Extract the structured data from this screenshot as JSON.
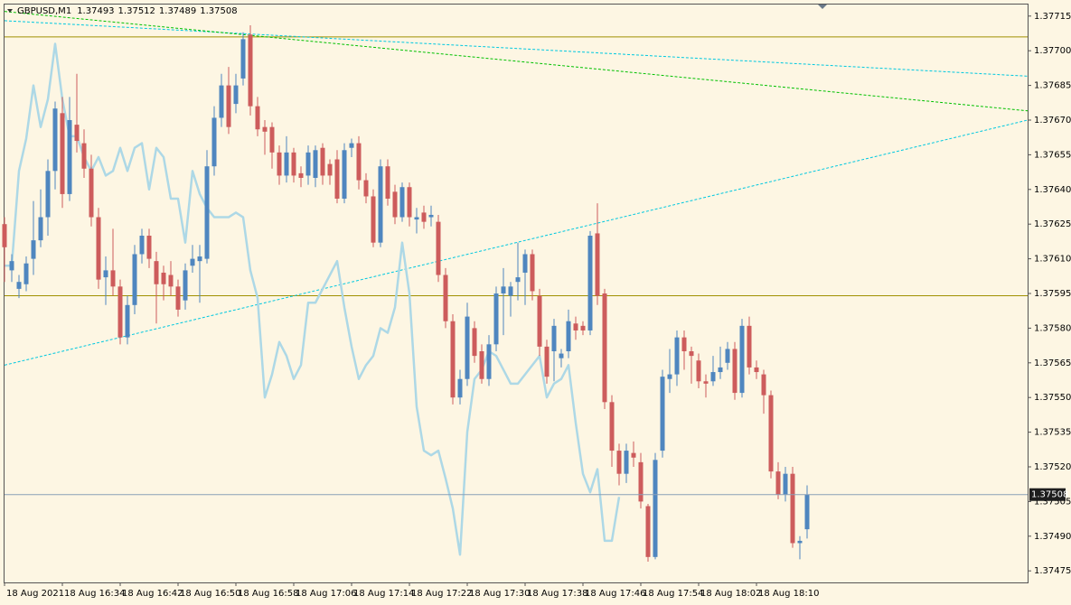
{
  "chart_data": {
    "type": "candlestick",
    "symbol": "GBPUSD,M1",
    "categories": [
      "18 Aug 2021",
      null,
      null,
      null,
      null,
      null,
      null,
      null,
      "18 Aug 16:34",
      null,
      null,
      null,
      null,
      null,
      null,
      null,
      "18 Aug 16:42",
      null,
      null,
      null,
      null,
      null,
      null,
      null,
      "18 Aug 16:50",
      null,
      null,
      null,
      null,
      null,
      null,
      null,
      "18 Aug 16:58",
      null,
      null,
      null,
      null,
      null,
      null,
      null,
      "18 Aug 17:06",
      null,
      null,
      null,
      null,
      null,
      null,
      null,
      "18 Aug 17:14",
      null,
      null,
      null,
      null,
      null,
      null,
      null,
      "18 Aug 17:22",
      null,
      null,
      null,
      null,
      null,
      null,
      null,
      "18 Aug 17:30",
      null,
      null,
      null,
      null,
      null,
      null,
      null,
      "18 Aug 17:38",
      null,
      null,
      null,
      null,
      null,
      null,
      null,
      "18 Aug 17:46",
      null,
      null,
      null,
      null,
      null,
      null,
      null,
      "18 Aug 17:54",
      null,
      null,
      null,
      null,
      null,
      null,
      null,
      "18 Aug 18:02",
      null,
      null,
      null,
      null,
      null,
      null,
      null,
      "18 Aug 18:10",
      null,
      null,
      null,
      null,
      null,
      null,
      null
    ],
    "open": [
      1.37625,
      1.37605,
      1.37597,
      1.37599,
      1.3761,
      1.37618,
      1.37628,
      1.37648,
      1.37673,
      1.37638,
      1.37668,
      1.3766,
      1.37649,
      1.37628,
      1.37602,
      1.37605,
      1.37598,
      1.37576,
      1.3759,
      1.37612,
      1.3762,
      1.37609,
      1.37604,
      1.37603,
      1.37598,
      1.37592,
      1.37607,
      1.37609,
      1.3761,
      1.3765,
      1.37671,
      1.37685,
      1.37677,
      1.37688,
      1.37707,
      1.37676,
      1.37667,
      1.37667,
      1.37656,
      1.37646,
      1.37656,
      1.37647,
      1.37646,
      1.37645,
      1.37658,
      1.37651,
      1.37653,
      1.37636,
      1.37658,
      1.3766,
      1.37644,
      1.37637,
      1.37617,
      1.3765,
      1.37639,
      1.37628,
      1.37641,
      1.37627,
      1.3763,
      1.37628,
      1.37626,
      1.37603,
      1.37583,
      1.3755,
      1.37558,
      1.3758,
      1.3757,
      1.37558,
      1.37573,
      1.37595,
      1.37594,
      1.376,
      1.37604,
      1.37612,
      1.37594,
      1.37572,
      1.3757,
      1.37567,
      1.3757,
      1.37582,
      1.37581,
      1.37579,
      1.37621,
      1.37595,
      1.37548,
      1.37527,
      1.37517,
      1.37526,
      1.37522,
      1.37503,
      1.37481,
      1.37527,
      1.37558,
      1.3756,
      1.37576,
      1.3757,
      1.37566,
      1.37557,
      1.37557,
      1.37561,
      1.37565,
      1.37571,
      1.37552,
      1.37581,
      1.37563,
      1.3756,
      1.37551,
      1.37518,
      1.37508,
      1.37517,
      1.37487,
      1.37493
    ],
    "high": [
      1.37628,
      1.37612,
      1.37603,
      1.37611,
      1.37635,
      1.3764,
      1.37653,
      1.37678,
      1.3768,
      1.3768,
      1.3769,
      1.37666,
      1.37655,
      1.37632,
      1.37611,
      1.37623,
      1.37601,
      1.37594,
      1.37616,
      1.37623,
      1.37623,
      1.37613,
      1.37607,
      1.37609,
      1.37601,
      1.37608,
      1.37616,
      1.37616,
      1.37657,
      1.37676,
      1.3769,
      1.37693,
      1.3769,
      1.37708,
      1.37711,
      1.3768,
      1.3767,
      1.37669,
      1.37659,
      1.37663,
      1.37658,
      1.3765,
      1.37659,
      1.37659,
      1.3766,
      1.37653,
      1.37657,
      1.3766,
      1.37662,
      1.37663,
      1.37647,
      1.3764,
      1.37653,
      1.37653,
      1.37642,
      1.37643,
      1.37643,
      1.37632,
      1.37633,
      1.37633,
      1.37629,
      1.37606,
      1.37586,
      1.37562,
      1.37591,
      1.37583,
      1.37573,
      1.37577,
      1.37598,
      1.37606,
      1.376,
      1.37617,
      1.37614,
      1.37614,
      1.37597,
      1.37575,
      1.37584,
      1.37571,
      1.37588,
      1.37585,
      1.37583,
      1.37622,
      1.37634,
      1.37597,
      1.37551,
      1.3753,
      1.3753,
      1.37531,
      1.37526,
      1.37504,
      1.37526,
      1.37562,
      1.37571,
      1.37579,
      1.37579,
      1.37572,
      1.37569,
      1.3756,
      1.37568,
      1.37572,
      1.37574,
      1.37574,
      1.37584,
      1.37585,
      1.37566,
      1.37562,
      1.37553,
      1.37522,
      1.3752,
      1.3752,
      1.3749,
      1.37512
    ],
    "low": [
      1.376,
      1.376,
      1.37593,
      1.37596,
      1.37603,
      1.37615,
      1.3762,
      1.3764,
      1.37632,
      1.37635,
      1.37656,
      1.37645,
      1.37624,
      1.37597,
      1.3759,
      1.37594,
      1.37573,
      1.37573,
      1.37586,
      1.37608,
      1.37606,
      1.37582,
      1.37592,
      1.37594,
      1.37585,
      1.37588,
      1.37604,
      1.37591,
      1.37608,
      1.37646,
      1.37667,
      1.37664,
      1.37673,
      1.37685,
      1.37672,
      1.37663,
      1.37655,
      1.37649,
      1.37642,
      1.37643,
      1.37643,
      1.37641,
      1.37642,
      1.37641,
      1.37642,
      1.37642,
      1.37634,
      1.37634,
      1.37654,
      1.3764,
      1.37634,
      1.37615,
      1.37615,
      1.37633,
      1.37625,
      1.37626,
      1.37624,
      1.37621,
      1.37623,
      1.37624,
      1.376,
      1.3758,
      1.37547,
      1.37547,
      1.37555,
      1.37565,
      1.37556,
      1.37555,
      1.3757,
      1.37577,
      1.37585,
      1.37592,
      1.3759,
      1.37592,
      1.37568,
      1.37556,
      1.37557,
      1.37563,
      1.37567,
      1.37575,
      1.37577,
      1.37577,
      1.3759,
      1.37545,
      1.3752,
      1.37512,
      1.37513,
      1.3752,
      1.37502,
      1.37479,
      1.3748,
      1.37524,
      1.37552,
      1.37555,
      1.37562,
      1.37556,
      1.37554,
      1.3755,
      1.37555,
      1.37558,
      1.37562,
      1.37549,
      1.3755,
      1.3756,
      1.37558,
      1.37543,
      1.37515,
      1.37506,
      1.37505,
      1.37485,
      1.3748,
      1.37489
    ],
    "close": [
      1.37615,
      1.37609,
      1.376,
      1.37608,
      1.37618,
      1.37628,
      1.37648,
      1.37675,
      1.37638,
      1.3767,
      1.37661,
      1.37649,
      1.37628,
      1.37601,
      1.37605,
      1.37598,
      1.37576,
      1.3759,
      1.37612,
      1.3762,
      1.3761,
      1.37599,
      1.37599,
      1.37598,
      1.37588,
      1.37605,
      1.3761,
      1.37611,
      1.3765,
      1.37671,
      1.37685,
      1.37667,
      1.37685,
      1.37705,
      1.37676,
      1.37666,
      1.37665,
      1.37656,
      1.37646,
      1.37656,
      1.37646,
      1.37645,
      1.37656,
      1.37657,
      1.37646,
      1.37646,
      1.37636,
      1.37657,
      1.3766,
      1.37644,
      1.37637,
      1.37617,
      1.3765,
      1.37636,
      1.37628,
      1.37641,
      1.37628,
      1.37628,
      1.37626,
      1.37629,
      1.37603,
      1.37583,
      1.3755,
      1.37558,
      1.37585,
      1.37568,
      1.37558,
      1.37573,
      1.37595,
      1.37598,
      1.37598,
      1.37602,
      1.37612,
      1.37596,
      1.37572,
      1.37559,
      1.37581,
      1.37569,
      1.37583,
      1.37579,
      1.37579,
      1.3762,
      1.37594,
      1.37548,
      1.37527,
      1.37517,
      1.37527,
      1.37524,
      1.37505,
      1.37481,
      1.37523,
      1.37559,
      1.3756,
      1.37576,
      1.3757,
      1.37568,
      1.37557,
      1.37556,
      1.37561,
      1.37563,
      1.37571,
      1.37552,
      1.37581,
      1.37563,
      1.37561,
      1.37551,
      1.37518,
      1.37508,
      1.37517,
      1.37487,
      1.37488,
      1.37508
    ],
    "bull_color": "#4f86bf",
    "bear_color": "#cd5c5c",
    "background": "#fdf6e3",
    "indicator": {
      "color": "#add8e6",
      "values": [
        1.37607,
        1.37607,
        1.37648,
        1.37662,
        1.37685,
        1.37667,
        1.37679,
        1.37703,
        1.37679,
        1.37663,
        1.37663,
        1.37654,
        1.37648,
        1.37654,
        1.37646,
        1.37648,
        1.37658,
        1.37648,
        1.37658,
        1.3766,
        1.3764,
        1.37658,
        1.37654,
        1.37636,
        1.37636,
        1.37617,
        1.37648,
        1.37638,
        1.37632,
        1.37628,
        1.37628,
        1.37628,
        1.3763,
        1.37628,
        1.37605,
        1.37593,
        1.3755,
        1.3756,
        1.37574,
        1.37568,
        1.37558,
        1.37564,
        1.37591,
        1.37591,
        1.37597,
        1.37603,
        1.37609,
        1.37589,
        1.37572,
        1.37558,
        1.37564,
        1.37568,
        1.3758,
        1.37578,
        1.37589,
        1.37617,
        1.37595,
        1.37546,
        1.37527,
        1.37525,
        1.37527,
        1.37515,
        1.37502,
        1.37482,
        1.37535,
        1.37558,
        1.37562,
        1.3757,
        1.37568,
        1.37562,
        1.37556,
        1.37556,
        1.3756,
        1.37564,
        1.37568,
        1.3755,
        1.37556,
        1.37558,
        1.37564,
        1.37539,
        1.37517,
        1.37509,
        1.37519,
        1.37488,
        1.37488,
        1.37507,
        null,
        null,
        null,
        null,
        null,
        null,
        null,
        null,
        null,
        null,
        null,
        null,
        null,
        null,
        null,
        null,
        null,
        null,
        null,
        null,
        null,
        null,
        null,
        null,
        null,
        null
      ]
    },
    "hlines": [
      {
        "value": 1.37706,
        "color": "#a09000"
      },
      {
        "value": 1.37594,
        "color": "#a09000"
      }
    ],
    "trendlines": [
      {
        "start": 1.37564,
        "end": 1.3767,
        "color": "#00c8e0"
      },
      {
        "start": 1.37713,
        "end": 1.37689,
        "color": "#00c8e0"
      },
      {
        "start": 1.37717,
        "end": 1.37674,
        "color": "#00c000"
      }
    ],
    "bid_color": "#8aa0b8",
    "ylim": [
      1.3747,
      1.3772
    ],
    "yticks": [
      1.37715,
      {
        "value": 1.377,
        "label": "1.37700"
      },
      1.37685,
      {
        "value": 1.3767,
        "label": "1.37670"
      },
      1.37655,
      {
        "value": 1.3764,
        "label": "1.37640"
      },
      1.37625,
      {
        "value": 1.3761,
        "label": "1.37610"
      },
      1.37595,
      {
        "value": 1.3758,
        "label": "1.37580"
      },
      1.37565,
      {
        "value": 1.3755,
        "label": "1.37550"
      },
      1.37535,
      {
        "value": 1.3752,
        "label": "1.37520"
      },
      1.37505,
      {
        "value": 1.3749,
        "label": "1.37490"
      },
      1.37475
    ]
  }
}
